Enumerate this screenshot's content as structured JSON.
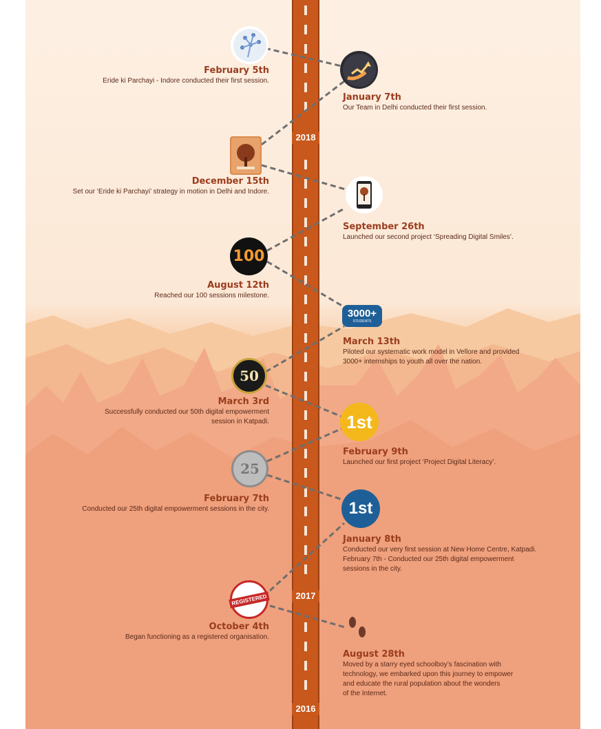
{
  "years": {
    "y2018": "2018",
    "y2017": "2017",
    "y2016": "2016"
  },
  "events": [
    {
      "id": "feb5",
      "date": "February 5th",
      "desc": "Eride ki Parchayi - Indore conducted their first session.",
      "icon": "people-network-icon"
    },
    {
      "id": "jan7",
      "date": "January 7th",
      "desc": "Our Team in Delhi conducted their first session.",
      "icon": "growth-hands-icon"
    },
    {
      "id": "dec15",
      "date": "December 15th",
      "desc": "Set our ‘Eride ki Parchayi’ strategy in motion in Delhi and Indore.",
      "icon": "tree-book-icon"
    },
    {
      "id": "sep26",
      "date": "September 26th",
      "desc": "Launched our second project ‘Spreading Digital Smiles’.",
      "icon": "tablet-tree-icon"
    },
    {
      "id": "aug12",
      "date": "August 12th",
      "desc": "Reached our 100 sessions milestone.",
      "icon": "hundred-badge-icon",
      "badge": "100"
    },
    {
      "id": "mar13",
      "date": "March 13th",
      "desc_lines": [
        "Piloted our systematic work model in Vellore and provided",
        "3000+ internships to youth all over the nation."
      ],
      "icon": "students-badge-icon",
      "badge": "3000+",
      "badge_sub": "STUDENTS"
    },
    {
      "id": "mar3",
      "date": "March 3rd",
      "desc_lines": [
        "Successfully conducted our 50th digital empowerment",
        "session in Katpadi."
      ],
      "icon": "fifty-badge-icon",
      "badge": "50"
    },
    {
      "id": "feb9",
      "date": "February 9th",
      "desc": "Launched our first project ‘Project Digital Literacy’.",
      "icon": "first-yellow-badge-icon",
      "badge": "1st"
    },
    {
      "id": "feb7",
      "date": "February 7th",
      "desc": "Conducted our 25th digital empowerment sessions in the city.",
      "icon": "twentyfive-coin-icon",
      "badge": "25"
    },
    {
      "id": "jan8",
      "date": "January 8th",
      "desc_lines": [
        "Conducted our very first session at New Home Centre, Katpadi.",
        "February 7th - Conducted our 25th digital empowerment",
        "sessions in the city."
      ],
      "icon": "first-blue-badge-icon",
      "badge": "1st"
    },
    {
      "id": "oct4",
      "date": "October 4th",
      "desc": "Began functioning as a registered organisation.",
      "icon": "registered-stamp-icon",
      "badge": "REGISTERED"
    },
    {
      "id": "aug28",
      "date": "August 28th",
      "desc_lines": [
        "Moved by a starry eyed schoolboy’s fascination with",
        "technology, we embarked upon this journey to empower",
        "and educate the rural population about the wonders",
        "of the Internet."
      ],
      "icon": "footprints-icon"
    }
  ],
  "colors": {
    "road": "#c9581c",
    "date": "#9a3d1d",
    "text": "#5b2a1a",
    "sky": "#fdf0e3",
    "forest": "#ef9c79",
    "badge_blue": "#1f5f98",
    "badge_yellow": "#f4b81c"
  }
}
